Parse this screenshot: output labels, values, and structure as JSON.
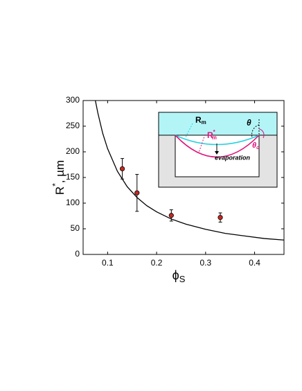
{
  "chart_data": {
    "type": "scatter",
    "ylabel": "R",
    "ylabel_sup": "*",
    "ylabel_rest": ", µm",
    "xlabel": "ϕ",
    "xlabel_sub": "S",
    "x": [
      0.13,
      0.16,
      0.23,
      0.33
    ],
    "values": [
      167,
      120,
      76,
      72
    ],
    "errors": [
      20,
      36,
      11,
      9
    ],
    "color": "#c8281e",
    "fit": {
      "x": [
        0.075,
        0.08,
        0.09,
        0.1,
        0.12,
        0.14,
        0.16,
        0.18,
        0.2,
        0.23,
        0.26,
        0.3,
        0.34,
        0.38,
        0.42,
        0.46
      ],
      "values": [
        300,
        276,
        236,
        206,
        162,
        132,
        111,
        95,
        83,
        69,
        59,
        49,
        41,
        36,
        31,
        28
      ],
      "color": "#000000"
    },
    "xlim": [
      0.05,
      0.46
    ],
    "ylim": [
      0,
      300
    ],
    "xticks": [
      0.1,
      0.2,
      0.3,
      0.4
    ],
    "yticks": [
      0,
      50,
      100,
      150,
      200,
      250,
      300
    ],
    "inset": {
      "r_m": "R",
      "r_m_sub": "m",
      "r_star": "R",
      "r_star_sup": "*",
      "r_star_sub": "m",
      "theta": "θ",
      "theta_o": "θ",
      "theta_o_sub": "o",
      "evaporation": "evaporation"
    }
  }
}
